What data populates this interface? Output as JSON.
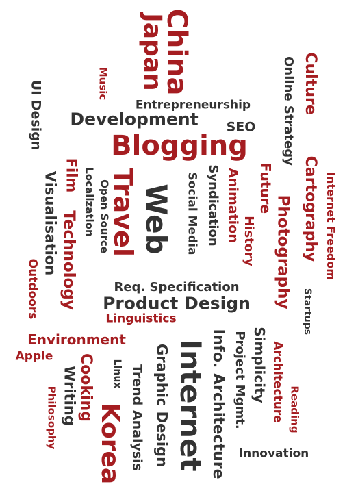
{
  "colors": {
    "red": "#a51d21",
    "dark": "#333333"
  },
  "words": [
    {
      "id": "china",
      "text": "China",
      "color": "red"
    },
    {
      "id": "japan",
      "text": "Japan",
      "color": "red"
    },
    {
      "id": "music",
      "text": "Music",
      "color": "red"
    },
    {
      "id": "ui-design",
      "text": "UI Design",
      "color": "dark"
    },
    {
      "id": "culture",
      "text": "Culture",
      "color": "red"
    },
    {
      "id": "online-strategy",
      "text": "Online Strategy",
      "color": "dark"
    },
    {
      "id": "entrepreneurship",
      "text": "Entrepreneurship",
      "color": "dark"
    },
    {
      "id": "development",
      "text": "Development",
      "color": "dark"
    },
    {
      "id": "seo",
      "text": "SEO",
      "color": "dark"
    },
    {
      "id": "blogging",
      "text": "Blogging",
      "color": "red"
    },
    {
      "id": "cartography",
      "text": "Cartography",
      "color": "red"
    },
    {
      "id": "internet-freedom",
      "text": "Internet Freedom",
      "color": "red"
    },
    {
      "id": "visualisation",
      "text": "Visualisation",
      "color": "dark"
    },
    {
      "id": "film",
      "text": "Film",
      "color": "red"
    },
    {
      "id": "localization",
      "text": "Localization",
      "color": "dark"
    },
    {
      "id": "open-source",
      "text": "Open Source",
      "color": "dark"
    },
    {
      "id": "travel",
      "text": "Travel",
      "color": "red"
    },
    {
      "id": "web",
      "text": "Web",
      "color": "dark"
    },
    {
      "id": "social-media",
      "text": "Social Media",
      "color": "dark"
    },
    {
      "id": "syndication",
      "text": "Syndication",
      "color": "dark"
    },
    {
      "id": "animation",
      "text": "Animation",
      "color": "red"
    },
    {
      "id": "future",
      "text": "Future",
      "color": "red"
    },
    {
      "id": "photography",
      "text": "Photography",
      "color": "red"
    },
    {
      "id": "history",
      "text": "History",
      "color": "red"
    },
    {
      "id": "technology",
      "text": "Technology",
      "color": "red"
    },
    {
      "id": "outdoors",
      "text": "Outdoors",
      "color": "red"
    },
    {
      "id": "req-specification",
      "text": "Req. Specification",
      "color": "dark"
    },
    {
      "id": "startups",
      "text": "Startups",
      "color": "dark"
    },
    {
      "id": "product-design",
      "text": "Product Design",
      "color": "dark"
    },
    {
      "id": "linguistics",
      "text": "Linguistics",
      "color": "red"
    },
    {
      "id": "environment",
      "text": "Environment",
      "color": "red"
    },
    {
      "id": "apple",
      "text": "Apple",
      "color": "red"
    },
    {
      "id": "internet",
      "text": "Internet",
      "color": "dark"
    },
    {
      "id": "info-architecture",
      "text": "Info. Architecture",
      "color": "dark"
    },
    {
      "id": "simplicity",
      "text": "Simplicity",
      "color": "dark"
    },
    {
      "id": "project-mgmt",
      "text": "Project Mgmt.",
      "color": "dark"
    },
    {
      "id": "architecture",
      "text": "Architecture",
      "color": "red"
    },
    {
      "id": "cooking",
      "text": "Cooking",
      "color": "red"
    },
    {
      "id": "writing",
      "text": "Writing",
      "color": "dark"
    },
    {
      "id": "philosophy",
      "text": "Philosophy",
      "color": "red"
    },
    {
      "id": "linux",
      "text": "Linux",
      "color": "dark"
    },
    {
      "id": "korea",
      "text": "Korea",
      "color": "red"
    },
    {
      "id": "graphic-design",
      "text": "Graphic Design",
      "color": "dark"
    },
    {
      "id": "trend-analysis",
      "text": "Trend Analysis",
      "color": "dark"
    },
    {
      "id": "reading",
      "text": "Reading",
      "color": "red"
    },
    {
      "id": "innovation",
      "text": "Innovation",
      "color": "dark"
    }
  ]
}
